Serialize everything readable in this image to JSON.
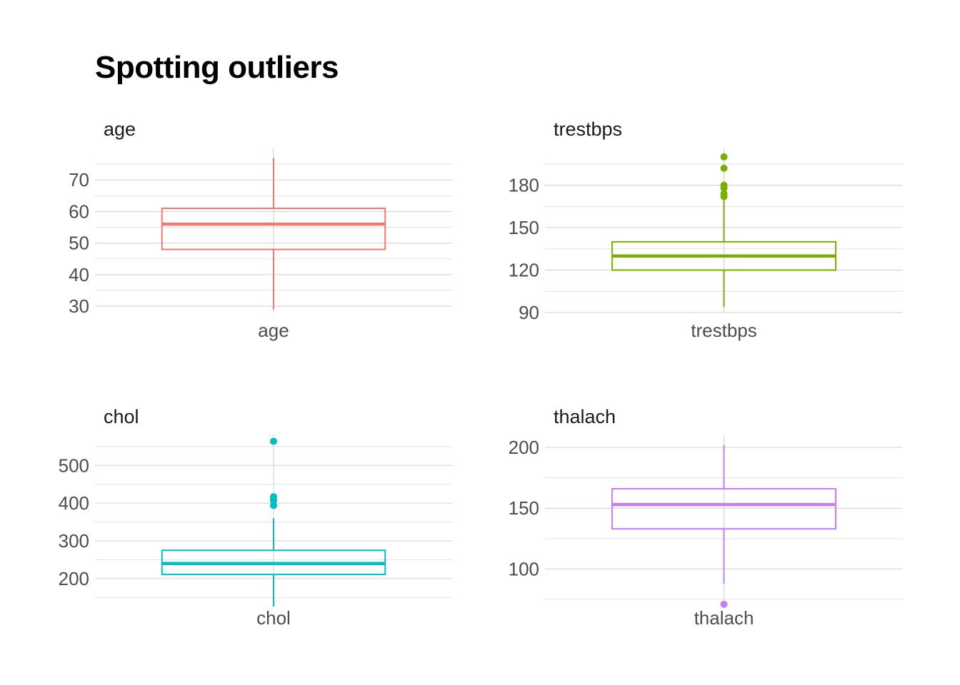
{
  "title": "Spotting outliers",
  "chart_data": [
    {
      "type": "boxplot",
      "facet": "age",
      "category": "age",
      "color": "#F8766D",
      "y_ticks": [
        30,
        40,
        50,
        60,
        70
      ],
      "ylim": [
        28,
        80
      ],
      "whisker_low": 29,
      "q1": 48,
      "median": 56,
      "q3": 61,
      "whisker_high": 77,
      "outliers": []
    },
    {
      "type": "boxplot",
      "facet": "trestbps",
      "category": "trestbps",
      "color": "#7CAE00",
      "y_ticks": [
        90,
        120,
        150,
        180
      ],
      "ylim": [
        90,
        206
      ],
      "whisker_low": 94,
      "q1": 120,
      "median": 130,
      "q3": 140,
      "whisker_high": 170,
      "outliers": [
        172,
        174,
        178,
        180,
        192,
        200
      ]
    },
    {
      "type": "boxplot",
      "facet": "chol",
      "category": "chol",
      "color": "#00BFC4",
      "y_ticks": [
        200,
        300,
        400,
        500
      ],
      "ylim": [
        145,
        580
      ],
      "whisker_low": 126,
      "q1": 211,
      "median": 240,
      "q3": 275,
      "whisker_high": 360,
      "outliers": [
        394,
        407,
        409,
        417,
        564
      ]
    },
    {
      "type": "boxplot",
      "facet": "thalach",
      "category": "thalach",
      "color": "#C77CFF",
      "y_ticks": [
        100,
        150,
        200
      ],
      "ylim": [
        75,
        210
      ],
      "whisker_low": 88,
      "q1": 133,
      "median": 153,
      "q3": 166,
      "whisker_high": 202,
      "outliers": [
        71
      ]
    }
  ]
}
